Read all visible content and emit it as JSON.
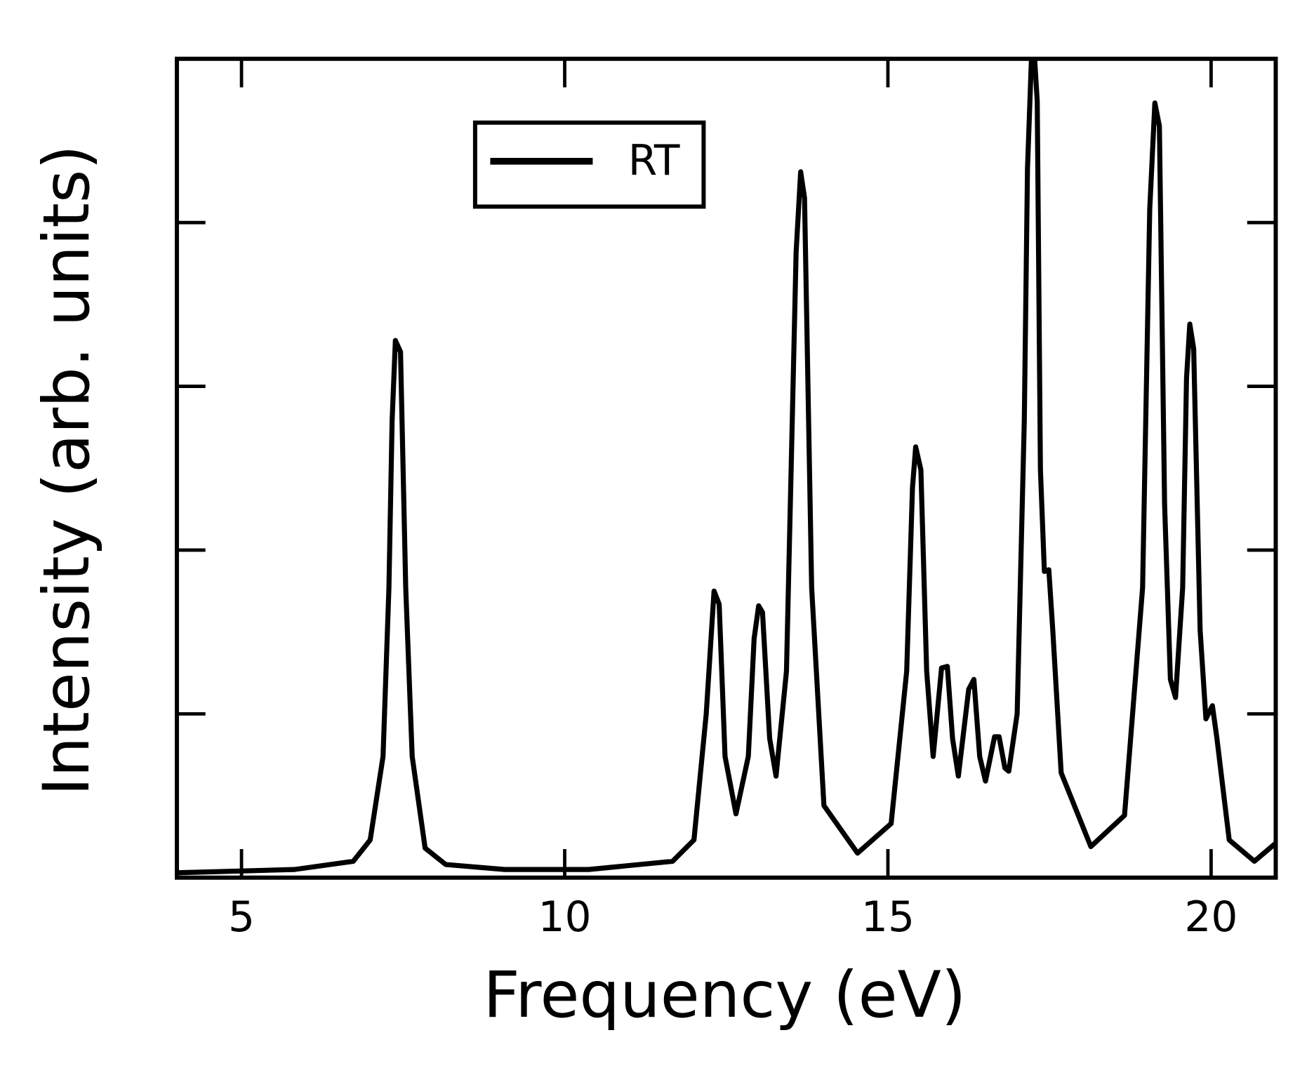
{
  "chart_data": {
    "type": "line",
    "xlabel": "Frequency (eV)",
    "ylabel": "Intensity (arb. units)",
    "xlim": [
      4,
      21
    ],
    "ylim": [
      0,
      5
    ],
    "xticks": [
      5,
      10,
      15,
      20
    ],
    "yticks": [
      1,
      2,
      3,
      4
    ],
    "legend": "upper center",
    "x": [
      4.0,
      5.82,
      6.73,
      6.99,
      7.19,
      7.28,
      7.33,
      7.38,
      7.46,
      7.54,
      7.64,
      7.84,
      8.16,
      9.07,
      10.37,
      11.67,
      12.0,
      12.19,
      12.31,
      12.39,
      12.48,
      12.65,
      12.84,
      12.93,
      13.0,
      13.06,
      13.17,
      13.27,
      13.43,
      13.52,
      13.58,
      13.65,
      13.71,
      13.82,
      14.01,
      14.53,
      15.05,
      15.29,
      15.38,
      15.43,
      15.51,
      15.6,
      15.7,
      15.83,
      15.92,
      16.0,
      16.09,
      16.25,
      16.33,
      16.42,
      16.51,
      16.65,
      16.72,
      16.81,
      16.87,
      17.0,
      17.11,
      17.16,
      17.22,
      17.27,
      17.31,
      17.36,
      17.42,
      17.49,
      17.55,
      17.68,
      18.14,
      18.66,
      18.94,
      19.05,
      19.13,
      19.2,
      19.28,
      19.37,
      19.45,
      19.56,
      19.62,
      19.67,
      19.73,
      19.83,
      19.92,
      20.02,
      20.09,
      20.28,
      20.67,
      21.0
    ],
    "series": [
      {
        "name": "RT",
        "color": "#000000",
        "values": [
          0.03,
          0.05,
          0.1,
          0.23,
          0.74,
          1.77,
          2.79,
          3.28,
          3.21,
          1.77,
          0.74,
          0.18,
          0.08,
          0.05,
          0.05,
          0.1,
          0.23,
          1.0,
          1.75,
          1.67,
          0.74,
          0.39,
          0.74,
          1.46,
          1.66,
          1.62,
          0.85,
          0.62,
          1.26,
          2.79,
          3.82,
          4.31,
          4.15,
          1.77,
          0.44,
          0.15,
          0.33,
          1.26,
          2.38,
          2.63,
          2.49,
          1.26,
          0.74,
          1.28,
          1.29,
          0.85,
          0.62,
          1.15,
          1.21,
          0.74,
          0.59,
          0.86,
          0.86,
          0.67,
          0.65,
          1.0,
          2.79,
          4.33,
          5.0,
          5.0,
          4.74,
          2.49,
          1.87,
          1.88,
          1.51,
          0.64,
          0.19,
          0.38,
          1.77,
          4.08,
          4.73,
          4.59,
          2.28,
          1.21,
          1.1,
          1.77,
          3.05,
          3.38,
          3.23,
          1.51,
          0.97,
          1.05,
          0.85,
          0.23,
          0.1,
          0.21
        ]
      }
    ]
  }
}
